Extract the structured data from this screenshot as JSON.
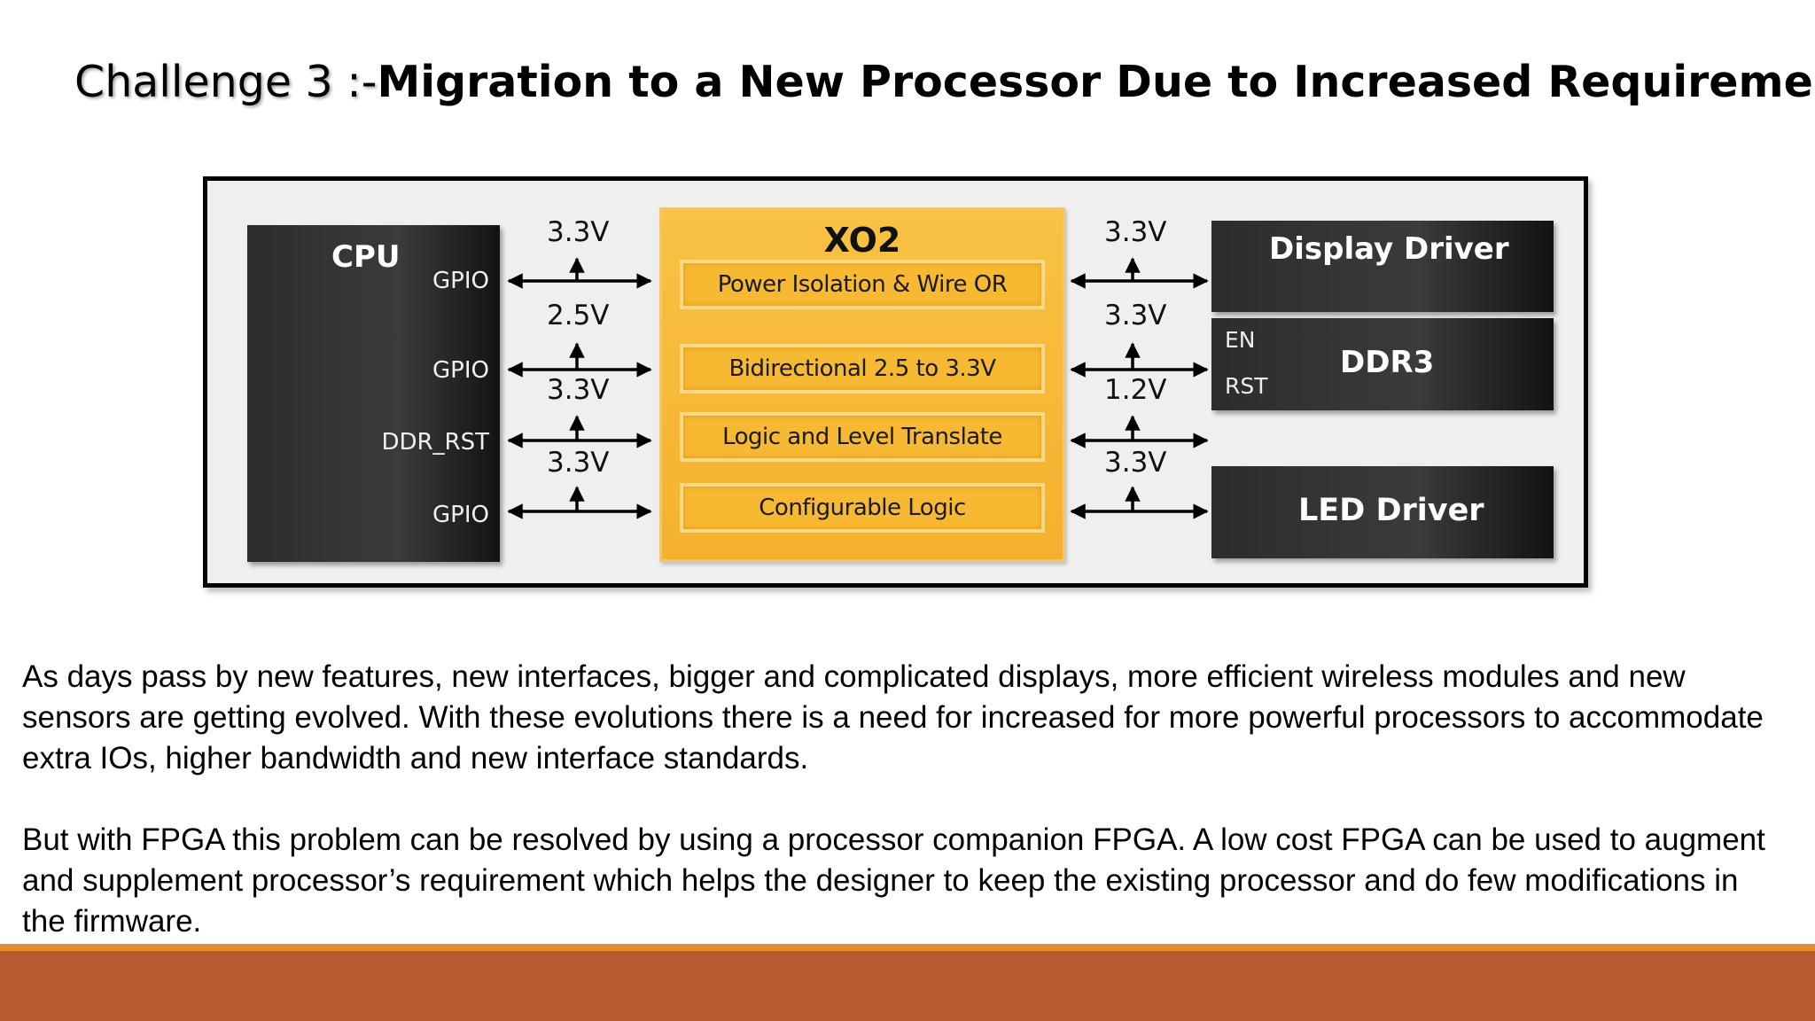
{
  "slide": {
    "title_prefix": "Challenge 3 :-",
    "title_main": "Migration to a New Processor Due to Increased Requirements",
    "paragraphs": [
      " As days pass by new features, new interfaces, bigger and complicated displays, more efficient wireless modules and new sensors are getting evolved. With these evolutions there is a need for increased for more powerful processors to accommodate extra IOs, higher bandwidth and new interface standards.",
      "But with FPGA this problem can be resolved by using a processor companion FPGA. A low cost FPGA can be used to augment and supplement processor’s requirement which helps the designer to keep the existing processor and do few modifications in the firmware."
    ]
  },
  "diagram": {
    "cpu": {
      "title": "CPU",
      "pins": [
        "GPIO",
        "GPIO",
        "DDR_RST",
        "GPIO"
      ]
    },
    "left_voltages": [
      "3.3V",
      "2.5V",
      "3.3V",
      "3.3V"
    ],
    "xo2": {
      "title": "XO2",
      "functions": [
        "Power Isolation & Wire OR",
        "Bidirectional 2.5 to 3.3V",
        "Logic and Level Translate",
        "Configurable Logic"
      ]
    },
    "right_voltages": [
      "3.3V",
      "3.3V",
      "1.2V",
      "3.3V"
    ],
    "peripherals": {
      "display": {
        "title": "Display Driver"
      },
      "ddr3": {
        "title": "DDR3",
        "pins": [
          "EN",
          "RST"
        ]
      },
      "led": {
        "title": "LED Driver"
      }
    }
  },
  "colors": {
    "footer_accent": "#e38d2d",
    "footer_bar": "#b95a30",
    "xo2_fill": "#f5b12d"
  }
}
